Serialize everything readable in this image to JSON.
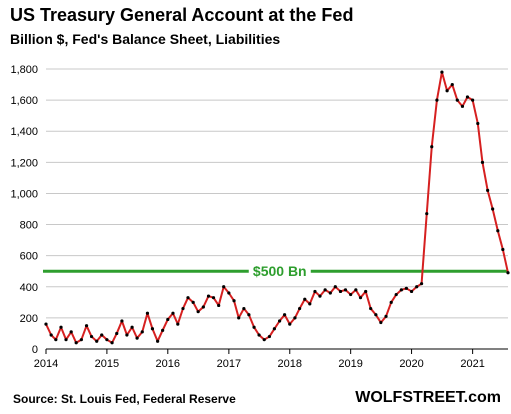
{
  "chart_data": {
    "type": "line",
    "title": "US Treasury General Account at the Fed",
    "subtitle": "Billion $, Fed's Balance Sheet, Liabilities",
    "xlabel": "",
    "ylabel": "",
    "xlim": [
      "2014-01-01",
      "2021-08-01"
    ],
    "ylim": [
      0,
      1800
    ],
    "yticks": [
      0,
      200,
      400,
      600,
      800,
      1000,
      1200,
      1400,
      1600,
      1800
    ],
    "ytick_labels": [
      "0",
      "200",
      "400",
      "600",
      "800",
      "1,000",
      "1,200",
      "1,400",
      "1,600",
      "1,800"
    ],
    "xticks": [
      "2014-01-01",
      "2015-01-01",
      "2016-01-01",
      "2017-01-01",
      "2018-01-01",
      "2019-01-01",
      "2020-01-01",
      "2021-01-01"
    ],
    "xtick_labels": [
      "2014",
      "2015",
      "2016",
      "2017",
      "2018",
      "2019",
      "2020",
      "2021"
    ],
    "grid": "horizontal",
    "series": [
      {
        "color": "#d62020",
        "points": [
          [
            "2014-01-01",
            160
          ],
          [
            "2014-02-01",
            90
          ],
          [
            "2014-03-01",
            60
          ],
          [
            "2014-04-01",
            140
          ],
          [
            "2014-05-01",
            60
          ],
          [
            "2014-06-01",
            110
          ],
          [
            "2014-07-01",
            40
          ],
          [
            "2014-08-01",
            60
          ],
          [
            "2014-09-01",
            150
          ],
          [
            "2014-10-01",
            80
          ],
          [
            "2014-11-01",
            50
          ],
          [
            "2014-12-01",
            90
          ],
          [
            "2015-01-01",
            60
          ],
          [
            "2015-02-01",
            40
          ],
          [
            "2015-03-01",
            100
          ],
          [
            "2015-04-01",
            180
          ],
          [
            "2015-05-01",
            90
          ],
          [
            "2015-06-01",
            140
          ],
          [
            "2015-07-01",
            70
          ],
          [
            "2015-08-01",
            110
          ],
          [
            "2015-09-01",
            230
          ],
          [
            "2015-10-01",
            130
          ],
          [
            "2015-11-01",
            50
          ],
          [
            "2015-12-01",
            120
          ],
          [
            "2016-01-01",
            190
          ],
          [
            "2016-02-01",
            230
          ],
          [
            "2016-03-01",
            160
          ],
          [
            "2016-04-01",
            260
          ],
          [
            "2016-05-01",
            330
          ],
          [
            "2016-06-01",
            300
          ],
          [
            "2016-07-01",
            240
          ],
          [
            "2016-08-01",
            270
          ],
          [
            "2016-09-01",
            340
          ],
          [
            "2016-10-01",
            330
          ],
          [
            "2016-11-01",
            280
          ],
          [
            "2016-12-01",
            400
          ],
          [
            "2017-01-01",
            360
          ],
          [
            "2017-02-01",
            310
          ],
          [
            "2017-03-01",
            200
          ],
          [
            "2017-04-01",
            260
          ],
          [
            "2017-05-01",
            220
          ],
          [
            "2017-06-01",
            140
          ],
          [
            "2017-07-01",
            90
          ],
          [
            "2017-08-01",
            60
          ],
          [
            "2017-09-01",
            80
          ],
          [
            "2017-10-01",
            130
          ],
          [
            "2017-11-01",
            180
          ],
          [
            "2017-12-01",
            220
          ],
          [
            "2018-01-01",
            160
          ],
          [
            "2018-02-01",
            200
          ],
          [
            "2018-03-01",
            260
          ],
          [
            "2018-04-01",
            320
          ],
          [
            "2018-05-01",
            290
          ],
          [
            "2018-06-01",
            370
          ],
          [
            "2018-07-01",
            340
          ],
          [
            "2018-08-01",
            380
          ],
          [
            "2018-09-01",
            360
          ],
          [
            "2018-10-01",
            400
          ],
          [
            "2018-11-01",
            370
          ],
          [
            "2018-12-01",
            380
          ],
          [
            "2019-01-01",
            350
          ],
          [
            "2019-02-01",
            380
          ],
          [
            "2019-03-01",
            330
          ],
          [
            "2019-04-01",
            370
          ],
          [
            "2019-05-01",
            260
          ],
          [
            "2019-06-01",
            220
          ],
          [
            "2019-07-01",
            170
          ],
          [
            "2019-08-01",
            210
          ],
          [
            "2019-09-01",
            300
          ],
          [
            "2019-10-01",
            350
          ],
          [
            "2019-11-01",
            380
          ],
          [
            "2019-12-01",
            390
          ],
          [
            "2020-01-01",
            370
          ],
          [
            "2020-02-01",
            400
          ],
          [
            "2020-03-01",
            420
          ],
          [
            "2020-04-01",
            870
          ],
          [
            "2020-05-01",
            1300
          ],
          [
            "2020-06-01",
            1600
          ],
          [
            "2020-07-01",
            1780
          ],
          [
            "2020-08-01",
            1660
          ],
          [
            "2020-09-01",
            1700
          ],
          [
            "2020-10-01",
            1600
          ],
          [
            "2020-11-01",
            1560
          ],
          [
            "2020-12-01",
            1620
          ],
          [
            "2021-01-01",
            1600
          ],
          [
            "2021-02-01",
            1450
          ],
          [
            "2021-03-01",
            1200
          ],
          [
            "2021-04-01",
            1020
          ],
          [
            "2021-05-01",
            900
          ],
          [
            "2021-06-01",
            760
          ],
          [
            "2021-07-01",
            640
          ],
          [
            "2021-08-01",
            490
          ]
        ]
      }
    ],
    "reference_line": {
      "y": 500,
      "label": "$500 Bn",
      "color": "#2e9e2e"
    },
    "source": "Source: St. Louis Fed, Federal Reserve",
    "brand": "WOLFSTREET.com"
  }
}
